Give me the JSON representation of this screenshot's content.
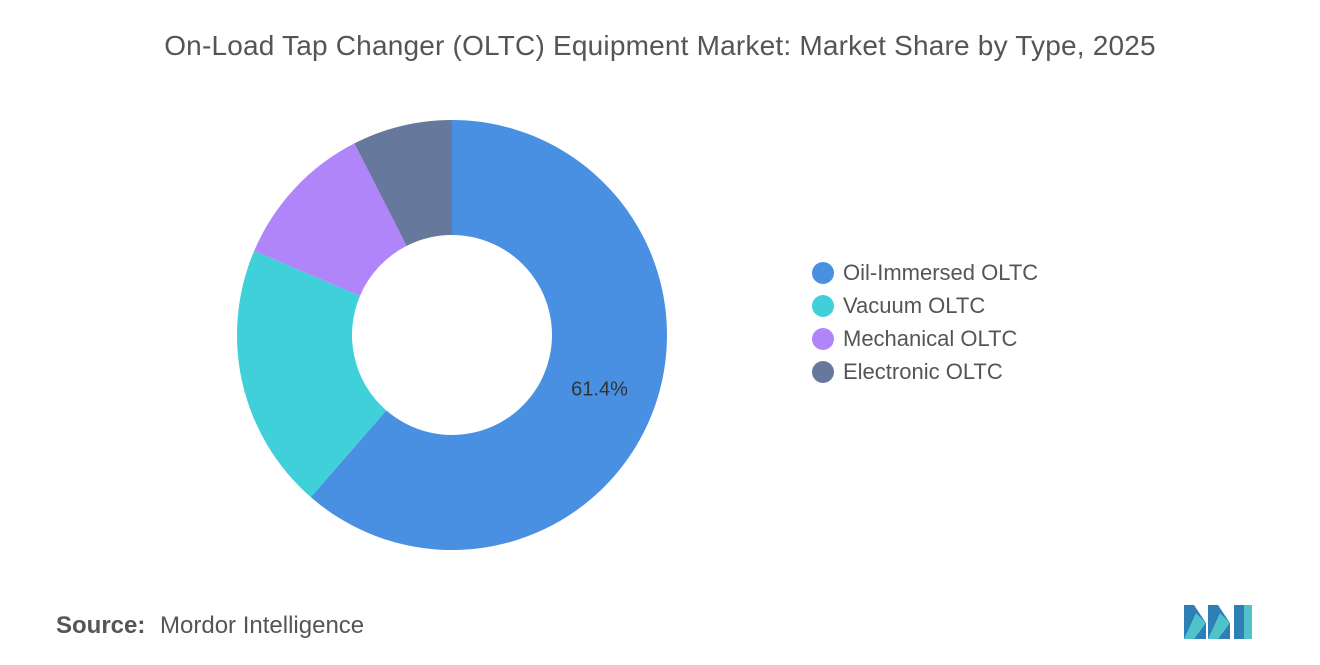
{
  "title": "On-Load Tap Changer (OLTC) Equipment Market: Market Share by Type, 2025",
  "source": {
    "key": "Source:",
    "value": "Mordor Intelligence"
  },
  "chart_data": {
    "type": "pie",
    "style": "donut",
    "title": "On-Load Tap Changer (OLTC) Equipment Market: Market Share by Type, 2025",
    "start_angle_deg": 0,
    "direction": "clockwise",
    "legend_position": "right",
    "categories": [
      "Oil-Immersed OLTC",
      "Vacuum OLTC",
      "Mechanical OLTC",
      "Electronic OLTC"
    ],
    "values": [
      61.4,
      20.0,
      11.1,
      7.5
    ],
    "colors": [
      "#4a90e2",
      "#3fd0da",
      "#b085f9",
      "#66789c"
    ],
    "data_labels": [
      "61.4%",
      "",
      "",
      ""
    ]
  }
}
